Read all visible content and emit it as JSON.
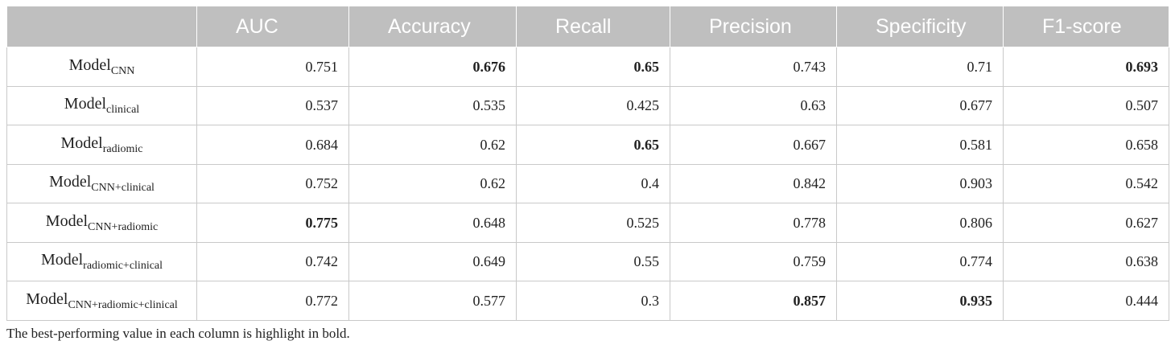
{
  "table": {
    "headers": [
      "",
      "AUC",
      "Accuracy",
      "Recall",
      "Precision",
      "Specificity",
      "F1-score"
    ],
    "rows": [
      {
        "model": "Model",
        "subscript": "CNN",
        "values": [
          "0.751",
          "0.676",
          "0.65",
          "0.743",
          "0.71",
          "0.693"
        ],
        "bold": [
          false,
          true,
          true,
          false,
          false,
          true
        ]
      },
      {
        "model": "Model",
        "subscript": "clinical",
        "values": [
          "0.537",
          "0.535",
          "0.425",
          "0.63",
          "0.677",
          "0.507"
        ],
        "bold": [
          false,
          false,
          false,
          false,
          false,
          false
        ]
      },
      {
        "model": "Model",
        "subscript": "radiomic",
        "values": [
          "0.684",
          "0.62",
          "0.65",
          "0.667",
          "0.581",
          "0.658"
        ],
        "bold": [
          false,
          false,
          true,
          false,
          false,
          false
        ]
      },
      {
        "model": "Model",
        "subscript": "CNN+clinical",
        "values": [
          "0.752",
          "0.62",
          "0.4",
          "0.842",
          "0.903",
          "0.542"
        ],
        "bold": [
          false,
          false,
          false,
          false,
          false,
          false
        ]
      },
      {
        "model": "Model",
        "subscript": "CNN+radiomic",
        "values": [
          "0.775",
          "0.648",
          "0.525",
          "0.778",
          "0.806",
          "0.627"
        ],
        "bold": [
          true,
          false,
          false,
          false,
          false,
          false
        ]
      },
      {
        "model": "Model",
        "subscript": "radiomic+clinical",
        "values": [
          "0.742",
          "0.649",
          "0.55",
          "0.759",
          "0.774",
          "0.638"
        ],
        "bold": [
          false,
          false,
          false,
          false,
          false,
          false
        ]
      },
      {
        "model": "Model",
        "subscript": "CNN+radiomic+clinical",
        "values": [
          "0.772",
          "0.577",
          "0.3",
          "0.857",
          "0.935",
          "0.444"
        ],
        "bold": [
          false,
          false,
          false,
          true,
          true,
          false
        ]
      }
    ]
  },
  "footnote": "The best-performing value in each column is highlight in bold."
}
